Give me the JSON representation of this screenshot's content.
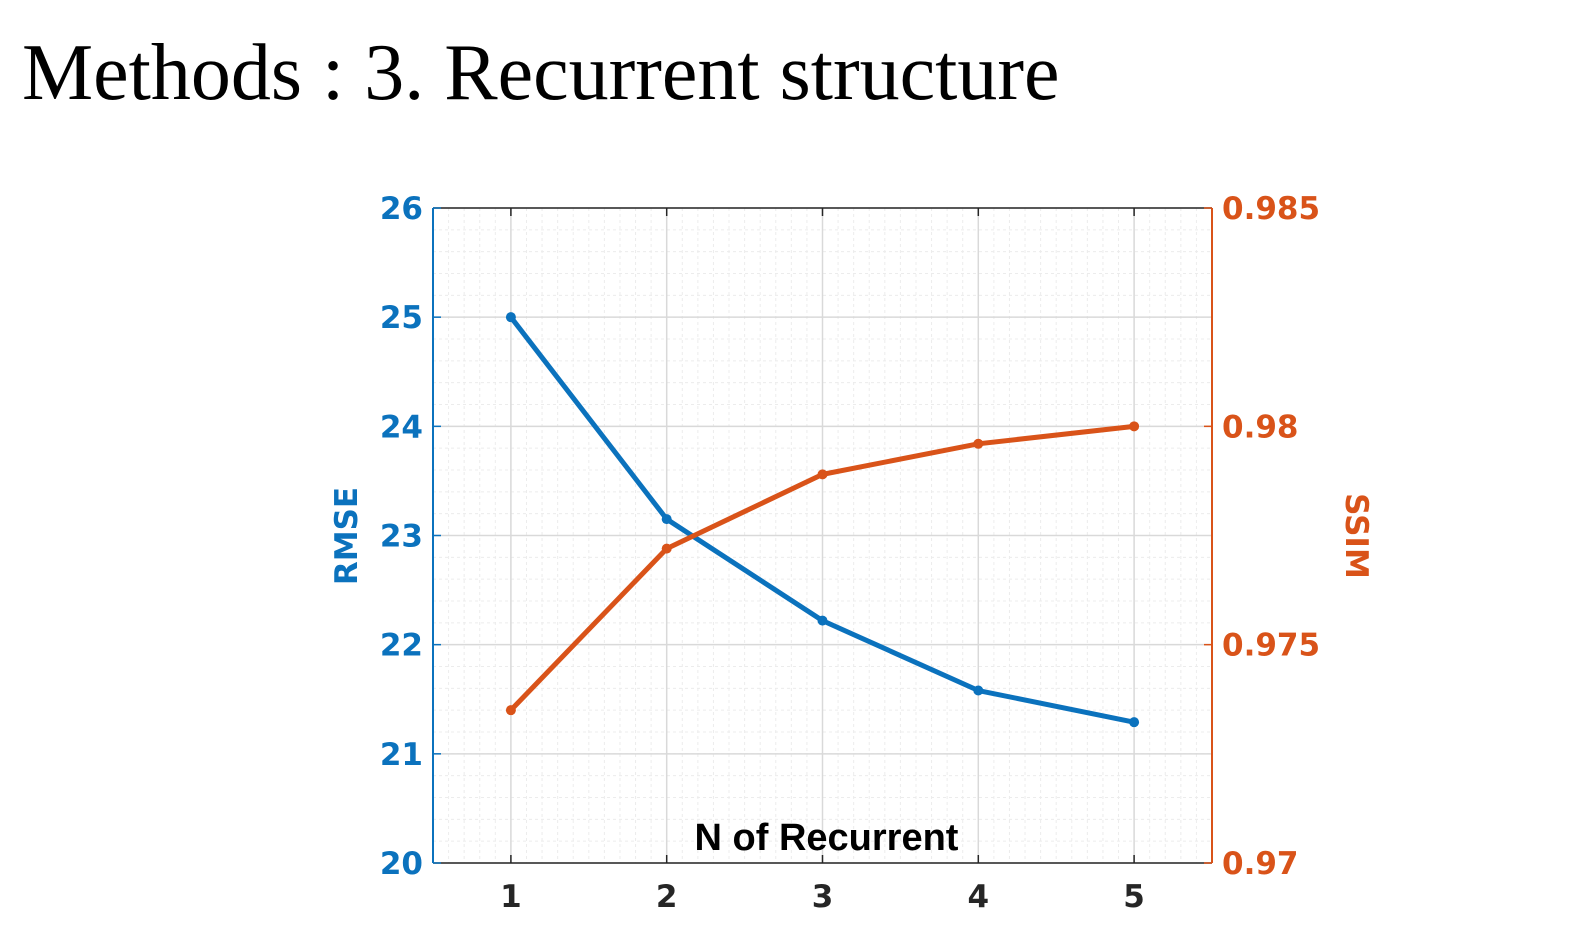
{
  "slide": {
    "title": "Methods : 3. Recurrent structure"
  },
  "colors": {
    "rmse": "#0b72bd",
    "ssim": "#d95319",
    "grid_major": "#d9d9d9",
    "grid_minor": "#ececec",
    "axis": "#262626"
  },
  "chart_data": {
    "type": "line",
    "title": "",
    "xlabel": "N of Recurrent",
    "ylabel": "RMSE",
    "y2label": "SSIM",
    "x": [
      1,
      2,
      3,
      4,
      5
    ],
    "xlim": [
      0.5,
      5.5
    ],
    "ylim": [
      20,
      26
    ],
    "y2lim": [
      0.97,
      0.985
    ],
    "x_ticks": [
      "1",
      "2",
      "3",
      "4",
      "5"
    ],
    "y_ticks": [
      "20",
      "21",
      "22",
      "23",
      "24",
      "25",
      "26"
    ],
    "y2_ticks": [
      "0.97",
      "0.975",
      "0.98",
      "0.985"
    ],
    "grid": true,
    "series": [
      {
        "name": "RMSE",
        "axis": "left",
        "values": [
          25.0,
          23.15,
          22.22,
          21.58,
          21.29
        ]
      },
      {
        "name": "SSIM",
        "axis": "right",
        "values": [
          0.9735,
          0.9772,
          0.9789,
          0.9796,
          0.98
        ]
      }
    ]
  }
}
